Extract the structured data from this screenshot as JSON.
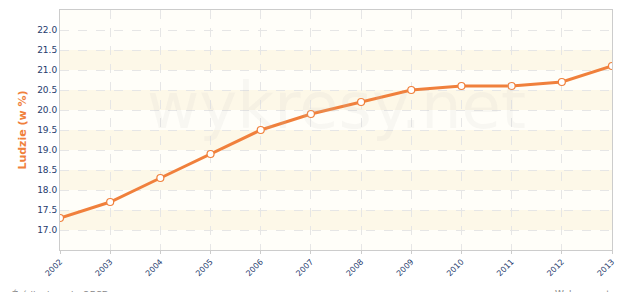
{
  "chart_data": {
    "type": "line",
    "y_label": "Ludzie (w %)",
    "x": [
      2002,
      2003,
      2004,
      2005,
      2006,
      2007,
      2008,
      2009,
      2010,
      2011,
      2012,
      2013
    ],
    "values": [
      17.3,
      17.7,
      18.3,
      18.9,
      19.5,
      19.9,
      20.2,
      20.5,
      20.6,
      20.6,
      20.7,
      21.1
    ],
    "color": "#f0803c",
    "marker": "circle",
    "line_style": "solid",
    "xlim": [
      2002,
      2013
    ],
    "xticks": [
      2002,
      2003,
      2004,
      2005,
      2006,
      2007,
      2008,
      2009,
      2010,
      2011,
      2012,
      2013
    ],
    "ylim": [
      16.5,
      22.5
    ],
    "yticks": [
      {
        "value": 17,
        "label": "17.0"
      },
      {
        "value": 17.5,
        "label": "17.5"
      },
      {
        "value": 18,
        "label": "18.0"
      },
      {
        "value": 18.5,
        "label": "18.5"
      },
      {
        "value": 19,
        "label": "19.0"
      },
      {
        "value": 19.5,
        "label": "19.5"
      },
      {
        "value": 20,
        "label": "20.0"
      },
      {
        "value": 20.5,
        "label": "20.5"
      },
      {
        "value": 21,
        "label": "21.0"
      },
      {
        "value": 21.5,
        "label": "21.5"
      },
      {
        "value": 22,
        "label": "22.0"
      }
    ],
    "grid": true,
    "annotations": [
      "Źródło danych: OECD",
      "Wykresy.net",
      "wykresy.net"
    ]
  }
}
